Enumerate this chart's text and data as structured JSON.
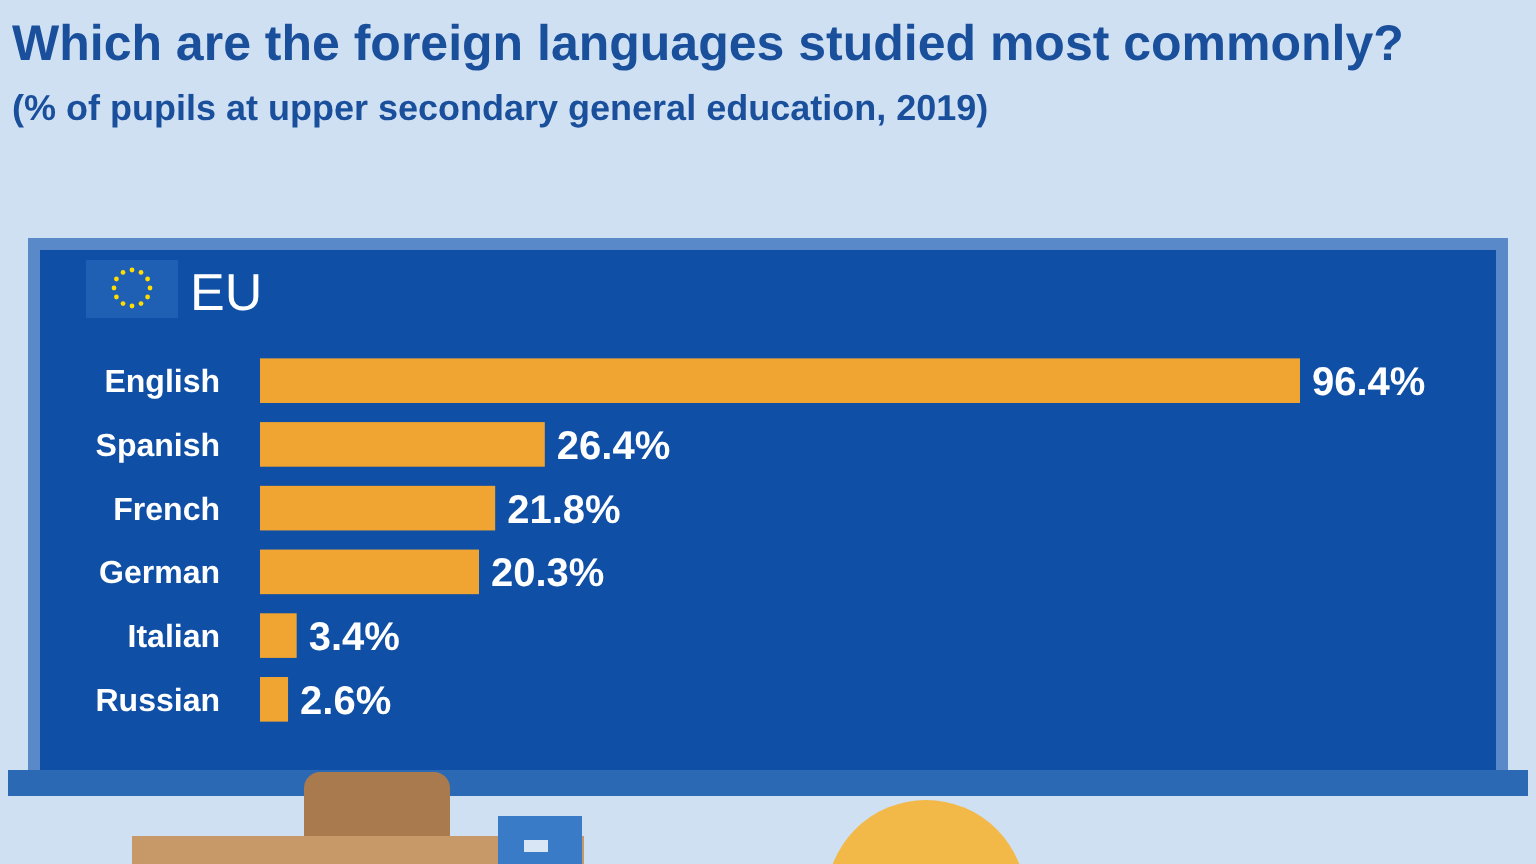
{
  "chart_data": {
    "type": "bar",
    "orientation": "horizontal",
    "title": "Which are the foreign languages studied most commonly?",
    "subtitle": "(% of pupils at upper secondary general education, 2019)",
    "annotations": [
      "EU"
    ],
    "categories": [
      "English",
      "Spanish",
      "French",
      "German",
      "Italian",
      "Russian"
    ],
    "values": [
      96.4,
      26.4,
      21.8,
      20.3,
      3.4,
      2.6
    ],
    "value_labels": [
      "96.4%",
      "26.4%",
      "21.8%",
      "20.3%",
      "3.4%",
      "2.6%"
    ],
    "color": "#f0a431"
  }
}
